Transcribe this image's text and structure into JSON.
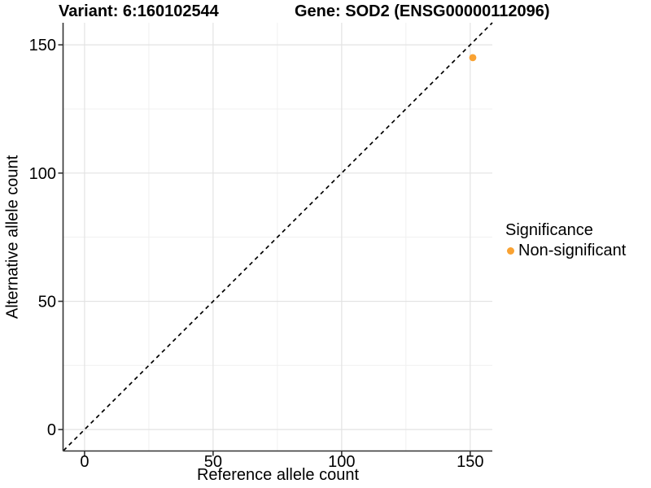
{
  "title": {
    "variant_label": "Variant: 6:160102544",
    "gene_label": "Gene: SOD2 (ENSG00000112096)"
  },
  "chart_data": {
    "type": "scatter",
    "title": "Variant: 6:160102544    Gene: SOD2 (ENSG00000112096)",
    "xlabel": "Reference allele count",
    "ylabel": "Alternative allele count",
    "xlim": [
      -8.2,
      158.6
    ],
    "ylim": [
      -8.2,
      158.6
    ],
    "x_ticks": [
      0,
      50,
      100,
      150
    ],
    "y_ticks": [
      0,
      50,
      100,
      150
    ],
    "minor_ticks": [
      25,
      75,
      125
    ],
    "grid": true,
    "legend_position": "right",
    "points": [
      {
        "x": 151,
        "y": 145,
        "series": "Non-significant",
        "color": "#F9A232"
      }
    ],
    "reference_line": {
      "kind": "identity y=x",
      "style": "dashed",
      "color": "#000000"
    },
    "legend": {
      "title": "Significance",
      "entries": [
        {
          "label": "Non-significant",
          "color": "#F9A232"
        }
      ]
    }
  },
  "colors": {
    "background": "#ffffff",
    "grid_major": "#e3e3e3",
    "grid_minor": "#f0f0f0",
    "axis_line": "#333333",
    "text": "#000000",
    "point_orange": "#F9A232"
  }
}
